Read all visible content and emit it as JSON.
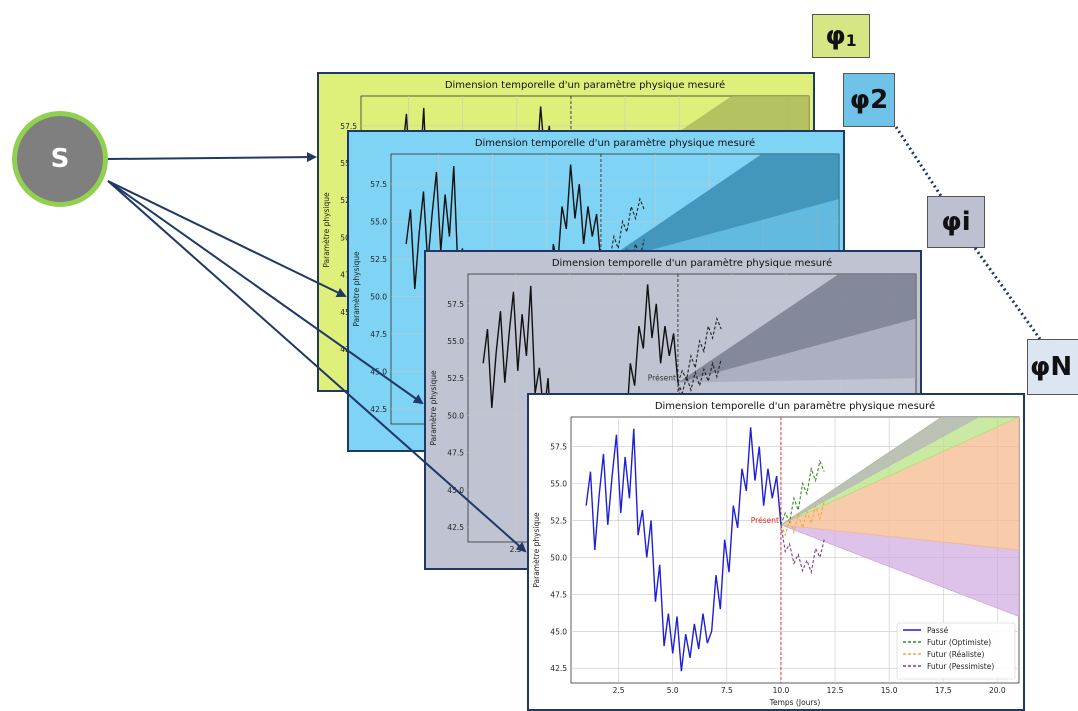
{
  "source_node": {
    "label": "S"
  },
  "tags": [
    {
      "main": "φ",
      "sub": "1",
      "bg": "#d6e685"
    },
    {
      "main": "φ2",
      "sub": "",
      "bg": "#6fc3e8"
    },
    {
      "main": "φi",
      "sub": "",
      "bg": "#bcc0d0"
    },
    {
      "main": "φN",
      "sub": "",
      "bg": "#dce6f2"
    }
  ],
  "colors": {
    "card_backgrounds": [
      "#dff07a",
      "#7fd3f5",
      "#bfc3d2",
      "#ffffff"
    ],
    "source_fill": "#7f7f7f",
    "source_ring": "#92d050",
    "arrow": "#1f3864",
    "past_line_front": "#1f1fd6",
    "past_line_back": "#111111",
    "present_line": "#e0271d",
    "optimistic": "#2e8b1f",
    "realistic": "#f2a93b",
    "pessimistic": "#7a3a9a",
    "cone_optimistic": "#b4e07a",
    "cone_realistic": "#f5b98f",
    "cone_pessimistic": "#cfa8e0",
    "cone_overlap": "#b8b8b8"
  },
  "chart_data": [
    {
      "type": "line",
      "title": "Dimension temporelle d'un paramètre physique mesuré",
      "xlabel": "Temps (Jours)",
      "ylabel": "Paramètre physique",
      "xlim": [
        0.3,
        21
      ],
      "ylim": [
        41.5,
        59.5
      ],
      "xticks": [
        "2.5",
        "5.0",
        "7.5",
        "10.0",
        "12.5",
        "15.0",
        "17.5",
        "20.0"
      ],
      "yticks": [
        "42.5",
        "45.0",
        "47.5",
        "50.0",
        "52.5",
        "55.0",
        "57.5"
      ],
      "present_x": 10.0,
      "present_label": "Présent",
      "grid": true,
      "legend_position": "bottom-right",
      "series": [
        {
          "name": "Passé",
          "x": [
            1.0,
            1.2,
            1.4,
            1.6,
            1.8,
            2.0,
            2.2,
            2.4,
            2.6,
            2.8,
            3.0,
            3.2,
            3.4,
            3.6,
            3.8,
            4.0,
            4.2,
            4.4,
            4.6,
            4.8,
            5.0,
            5.2,
            5.4,
            5.6,
            5.8,
            6.0,
            6.2,
            6.4,
            6.6,
            6.8,
            7.0,
            7.2,
            7.4,
            7.6,
            7.8,
            8.0,
            8.2,
            8.4,
            8.6,
            8.8,
            9.0,
            9.2,
            9.4,
            9.6,
            9.8,
            10.0
          ],
          "values": [
            53.5,
            55.8,
            50.5,
            54.2,
            57.0,
            52.2,
            55.5,
            58.3,
            53.0,
            56.8,
            54.0,
            58.7,
            51.5,
            53.2,
            50.0,
            52.5,
            47.0,
            49.5,
            44.0,
            46.2,
            43.5,
            46.0,
            42.3,
            44.8,
            43.2,
            45.5,
            43.8,
            46.2,
            44.2,
            45.0,
            48.8,
            46.5,
            51.2,
            49.0,
            53.5,
            52.0,
            56.0,
            54.5,
            58.8,
            55.2,
            57.5,
            53.5,
            56.0,
            54.0,
            55.5,
            52.2
          ]
        },
        {
          "name": "Futur (Optimiste)",
          "x": [
            10.0,
            10.2,
            10.4,
            10.6,
            10.8,
            11.0,
            11.2,
            11.4,
            11.6,
            11.8,
            12.0
          ],
          "values": [
            52.2,
            53.0,
            52.4,
            54.0,
            53.2,
            55.0,
            54.3,
            56.0,
            55.2,
            56.5,
            55.8
          ]
        },
        {
          "name": "Futur (Réaliste)",
          "x": [
            10.0,
            10.2,
            10.4,
            10.6,
            10.8,
            11.0,
            11.2,
            11.4,
            11.6,
            11.8,
            12.0
          ],
          "values": [
            52.2,
            51.5,
            52.6,
            51.7,
            52.9,
            52.0,
            53.1,
            52.3,
            53.5,
            52.6,
            53.8
          ]
        },
        {
          "name": "Futur (Pessimiste)",
          "x": [
            10.0,
            10.2,
            10.4,
            10.6,
            10.8,
            11.0,
            11.2,
            11.4,
            11.6,
            11.8,
            12.0
          ],
          "values": [
            52.2,
            50.4,
            50.9,
            49.6,
            50.2,
            49.1,
            49.8,
            49.0,
            50.6,
            50.0,
            51.2
          ]
        }
      ]
    }
  ]
}
